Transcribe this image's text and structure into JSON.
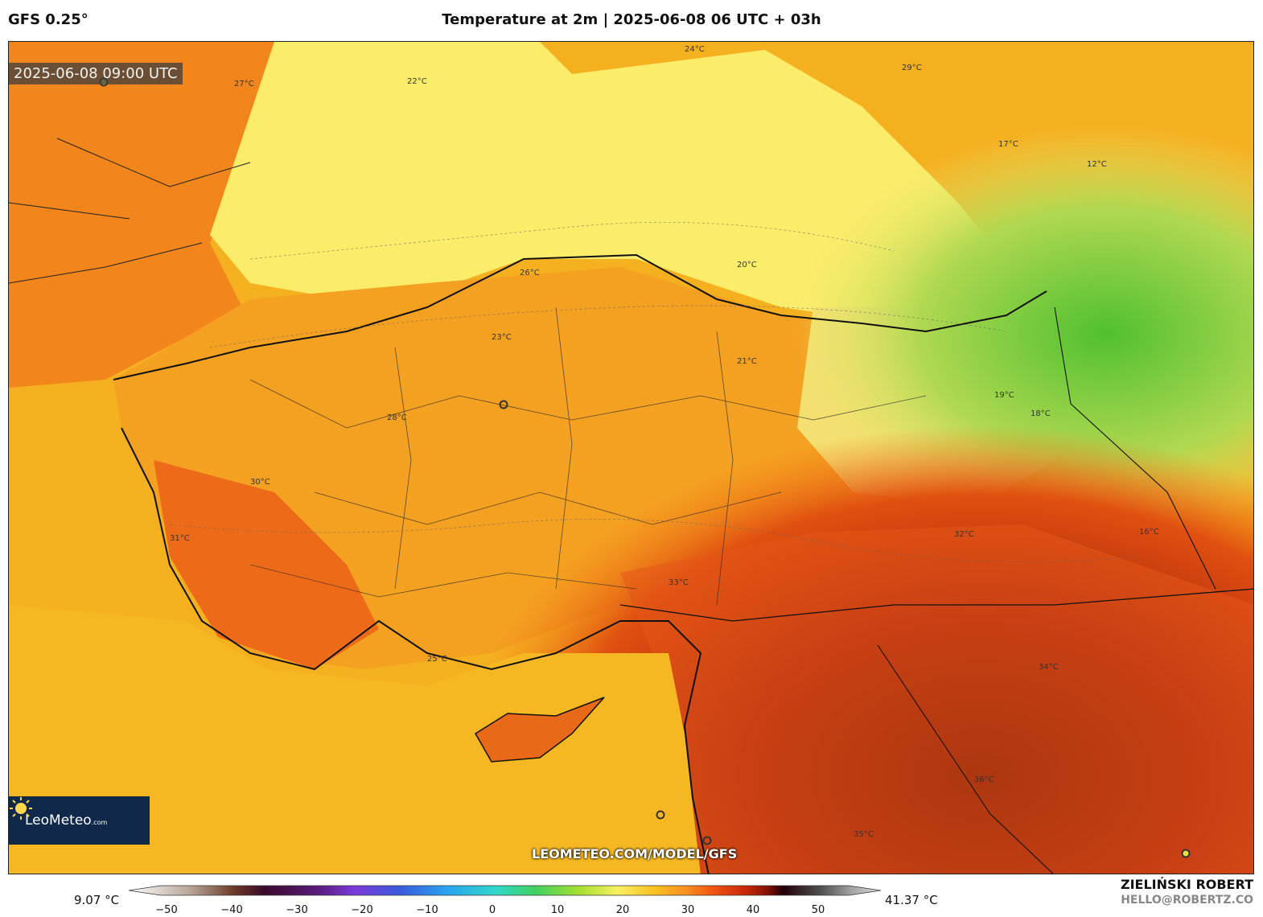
{
  "header": {
    "model": "GFS 0.25°",
    "title": "Temperature at 2m | 2025-06-08 06 UTC + 03h"
  },
  "map": {
    "timestamp": "2025-06-08 09:00 UTC",
    "site_url": "LEOMETEO.COM/MODEL/GFS",
    "logo_text": "LeoMeteo",
    "logo_suffix": ".com",
    "contour_labels": [
      "22°C",
      "24°C",
      "27°C",
      "28°C",
      "29°C",
      "26°C",
      "21°C",
      "20°C",
      "23°C",
      "25°C",
      "30°C",
      "32°C",
      "33°C",
      "31°C",
      "17°C",
      "12°C",
      "19°C",
      "18°C",
      "16°C",
      "35°C",
      "36°C",
      "34°C"
    ]
  },
  "colorbar": {
    "min_label": "9.07 °C",
    "max_label": "41.37 °C",
    "ticks": [
      "−50",
      "−40",
      "−30",
      "−20",
      "−10",
      "0",
      "10",
      "20",
      "30",
      "40",
      "50"
    ],
    "colors": [
      "#ffffff",
      "#b8a89a",
      "#6e3a28",
      "#3a0a2a",
      "#5a1a7a",
      "#7a3ad8",
      "#3a5adc",
      "#2aa0f0",
      "#30d8c8",
      "#40d060",
      "#a8e030",
      "#f8f060",
      "#f8c020",
      "#f89020",
      "#f05010",
      "#c82808",
      "#801008",
      "#200008",
      "#505050",
      "#a0a0a0",
      "#e0e0e0"
    ]
  },
  "author": {
    "name": "ZIELIŃSKI ROBERT",
    "email": "HELLO@ROBERTZ.CO"
  }
}
